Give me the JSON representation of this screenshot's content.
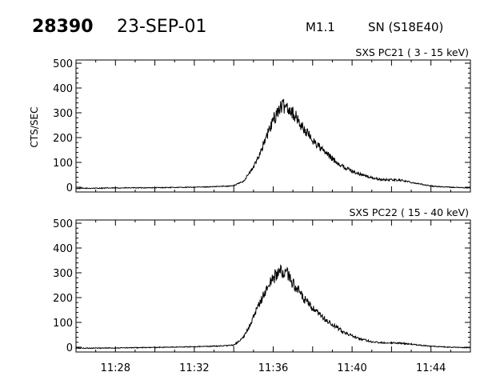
{
  "header": {
    "event_number": "28390",
    "date": "23-SEP-01",
    "flare_class": "M1.1",
    "location": "SN (S18E40)"
  },
  "chart_data": [
    {
      "type": "line",
      "title": "SXS PC21  ( 3 - 15 keV)",
      "ylabel": "CTS/SEC",
      "xlabel": "",
      "ylim": [
        0,
        500
      ],
      "yticks": [
        0,
        100,
        200,
        300,
        400,
        500
      ],
      "xlim": [
        "11:26",
        "11:46"
      ],
      "xticks": [
        "11:28",
        "11:32",
        "11:36",
        "11:40",
        "11:44"
      ],
      "grid": false,
      "series": [
        {
          "x": [
            "11:26",
            "11:28",
            "11:30",
            "11:32",
            "11:33",
            "11:34",
            "11:34:30",
            "11:35",
            "11:35:30",
            "11:36",
            "11:36:20",
            "11:36:40",
            "11:37",
            "11:37:30",
            "11:38",
            "11:38:30",
            "11:39",
            "11:39:30",
            "11:40",
            "11:40:30",
            "11:41",
            "11:41:30",
            "11:42",
            "11:42:30",
            "11:43",
            "11:43:30",
            "11:44",
            "11:44:30",
            "11:45",
            "11:46"
          ],
          "y": [
            -5,
            -3,
            -2,
            0,
            2,
            6,
            25,
            80,
            170,
            270,
            320,
            330,
            300,
            240,
            190,
            150,
            115,
            85,
            65,
            50,
            38,
            30,
            30,
            28,
            20,
            12,
            5,
            2,
            0,
            -3
          ]
        }
      ]
    },
    {
      "type": "line",
      "title": "SXS PC22  ( 15 - 40 keV)",
      "ylabel": "",
      "xlabel": "",
      "ylim": [
        0,
        500
      ],
      "yticks": [
        0,
        100,
        200,
        300,
        400,
        500
      ],
      "xlim": [
        "11:26",
        "11:46"
      ],
      "xticks": [
        "11:28",
        "11:32",
        "11:36",
        "11:40",
        "11:44"
      ],
      "grid": false,
      "series": [
        {
          "x": [
            "11:26",
            "11:28",
            "11:30",
            "11:32",
            "11:33",
            "11:34",
            "11:34:30",
            "11:35",
            "11:35:30",
            "11:36",
            "11:36:20",
            "11:36:40",
            "11:37",
            "11:37:30",
            "11:38",
            "11:38:30",
            "11:39",
            "11:39:30",
            "11:40",
            "11:40:30",
            "11:41",
            "11:41:30",
            "11:42",
            "11:42:30",
            "11:43",
            "11:43:30",
            "11:44",
            "11:44:30",
            "11:45",
            "11:46"
          ],
          "y": [
            -4,
            -3,
            -1,
            2,
            4,
            8,
            40,
            120,
            210,
            280,
            305,
            300,
            260,
            200,
            155,
            120,
            90,
            65,
            45,
            32,
            22,
            18,
            18,
            16,
            12,
            8,
            4,
            2,
            0,
            -2
          ]
        }
      ]
    }
  ]
}
